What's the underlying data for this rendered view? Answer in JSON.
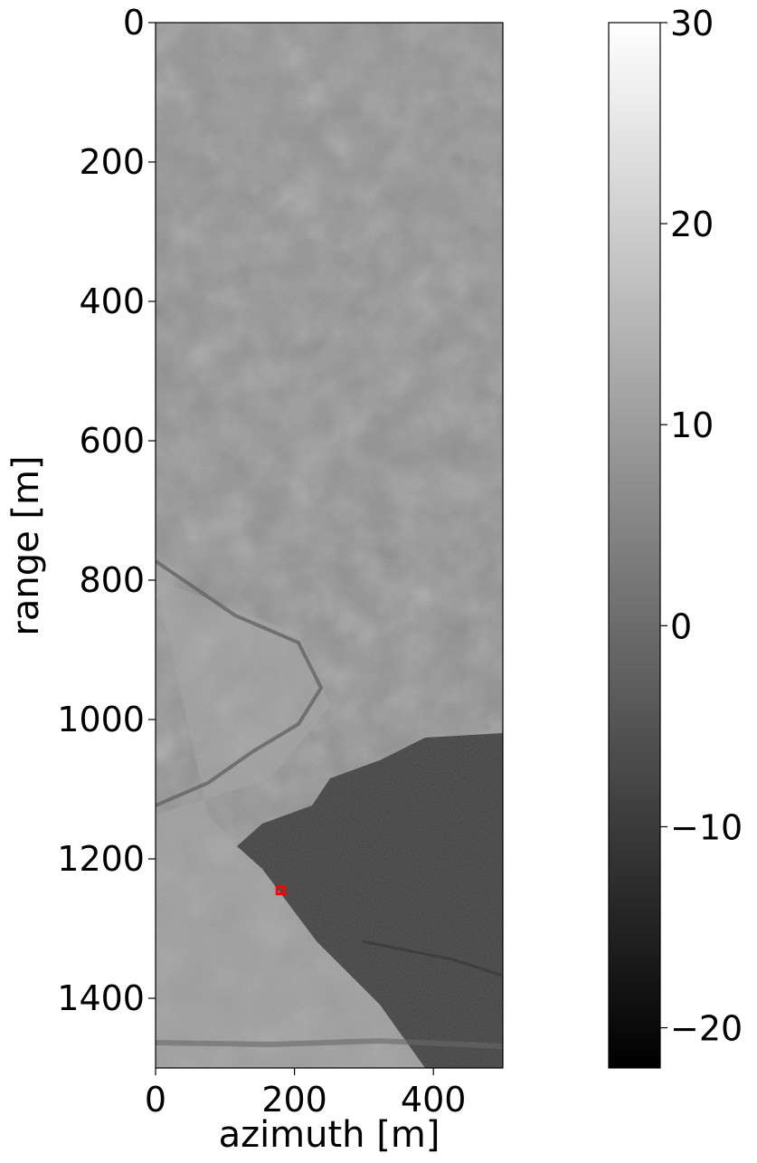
{
  "chart_data": {
    "type": "heatmap",
    "title": "",
    "xlabel": "azimuth [m]",
    "ylabel": "range [m]",
    "xlim": [
      0,
      500
    ],
    "ylim": [
      1500,
      0
    ],
    "x_ticks": [
      0,
      200,
      400
    ],
    "y_ticks": [
      0,
      200,
      400,
      600,
      800,
      1000,
      1200,
      1400
    ],
    "colormap": "gray",
    "colorbar": {
      "range": [
        -22,
        30
      ],
      "ticks": [
        30,
        20,
        10,
        0,
        -10,
        -20
      ],
      "tick_labels": [
        "30",
        "20",
        "10",
        "0",
        "−10",
        "−20"
      ]
    },
    "marker": {
      "shape": "square",
      "color": "#ff0000",
      "x": 180,
      "y": 1245
    },
    "regions": [
      {
        "name": "bright-upper-field",
        "range_extent": [
          0,
          1000
        ],
        "approx_value": 8
      },
      {
        "name": "dark-lower-right-region",
        "range_extent": [
          1020,
          1480
        ],
        "approx_value": -8
      }
    ],
    "grid": false
  }
}
